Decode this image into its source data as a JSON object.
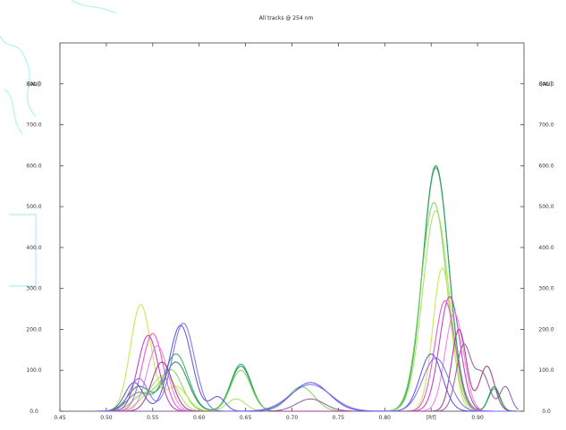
{
  "chart_data": {
    "type": "line",
    "title": "All tracks @ 254 nm",
    "y_unit_label": "[AU]",
    "xlim": [
      0.45,
      0.95
    ],
    "ylim": [
      0,
      900
    ],
    "x_ticks": [
      "0.45",
      "0.50",
      "0.55",
      "0.60",
      "0.65",
      "0.70",
      "0.75",
      "0.80",
      "[Rf]",
      "0.90"
    ],
    "y_ticks": [
      "0.0",
      "100.0",
      "200.0",
      "300.0",
      "400.0",
      "500.0",
      "600.0",
      "700.0",
      "800.0"
    ],
    "grid": false,
    "legend": "none",
    "series": [
      {
        "color": "#1e8c52",
        "peaks": [
          [
            0.535,
            60,
            0.012
          ],
          [
            0.575,
            120,
            0.013
          ],
          [
            0.645,
            110,
            0.011
          ],
          [
            0.855,
            600,
            0.014
          ],
          [
            0.918,
            60,
            0.006
          ]
        ]
      },
      {
        "color": "#2aa860",
        "peaks": [
          [
            0.535,
            45,
            0.012
          ],
          [
            0.575,
            140,
            0.013
          ],
          [
            0.645,
            115,
            0.011
          ],
          [
            0.855,
            595,
            0.014
          ],
          [
            0.918,
            55,
            0.006
          ]
        ]
      },
      {
        "color": "#7ad65a",
        "peaks": [
          [
            0.54,
            40,
            0.012
          ],
          [
            0.57,
            100,
            0.012
          ],
          [
            0.645,
            100,
            0.011
          ],
          [
            0.71,
            60,
            0.014
          ],
          [
            0.853,
            510,
            0.014
          ]
        ]
      },
      {
        "color": "#a8e060",
        "peaks": [
          [
            0.545,
            30,
            0.012
          ],
          [
            0.565,
            80,
            0.012
          ],
          [
            0.64,
            30,
            0.01
          ],
          [
            0.855,
            490,
            0.014
          ]
        ]
      },
      {
        "color": "#c6e63a",
        "peaks": [
          [
            0.537,
            260,
            0.011
          ],
          [
            0.575,
            60,
            0.012
          ],
          [
            0.862,
            350,
            0.01
          ]
        ]
      },
      {
        "color": "#c030c0",
        "peaks": [
          [
            0.545,
            185,
            0.011
          ],
          [
            0.87,
            280,
            0.011
          ]
        ]
      },
      {
        "color": "#e04ad6",
        "peaks": [
          [
            0.55,
            190,
            0.011
          ],
          [
            0.865,
            270,
            0.011
          ]
        ]
      },
      {
        "color": "#f07ae0",
        "peaks": [
          [
            0.555,
            160,
            0.011
          ],
          [
            0.875,
            240,
            0.01
          ]
        ]
      },
      {
        "color": "#a0308a",
        "peaks": [
          [
            0.56,
            120,
            0.011
          ],
          [
            0.88,
            200,
            0.008
          ],
          [
            0.91,
            110,
            0.008
          ]
        ]
      },
      {
        "color": "#8a5a9a",
        "peaks": [
          [
            0.72,
            30,
            0.015
          ],
          [
            0.885,
            160,
            0.008
          ],
          [
            0.905,
            90,
            0.008
          ],
          [
            0.93,
            60,
            0.006
          ]
        ]
      },
      {
        "color": "#5050e0",
        "peaks": [
          [
            0.53,
            70,
            0.01
          ],
          [
            0.58,
            210,
            0.012
          ],
          [
            0.62,
            35,
            0.008
          ],
          [
            0.72,
            70,
            0.02
          ],
          [
            0.85,
            140,
            0.012
          ]
        ]
      },
      {
        "color": "#7a6af0",
        "peaks": [
          [
            0.535,
            80,
            0.01
          ],
          [
            0.583,
            215,
            0.012
          ],
          [
            0.72,
            65,
            0.022
          ],
          [
            0.855,
            130,
            0.014
          ]
        ]
      }
    ]
  }
}
